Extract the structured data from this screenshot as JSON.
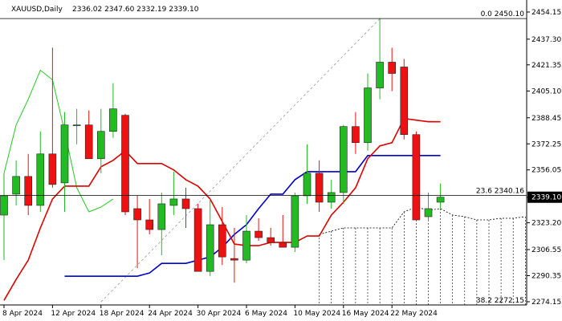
{
  "chart_data": {
    "type": "candlestick",
    "symbol": "XAUUSD,Daily",
    "ohlc_text": "2336.02 2347.60 2332.19 2339.10",
    "current_price": "2339.10",
    "y_ticks": [
      "2454.15",
      "2437.30",
      "2421.35",
      "2405.10",
      "2388.45",
      "2372.25",
      "2356.05",
      "2339.10",
      "2323.20",
      "2306.55",
      "2290.35",
      "2274.15"
    ],
    "x_ticks": [
      {
        "label": "8 Apr 2024",
        "i": 0
      },
      {
        "label": "12 Apr 2024",
        "i": 4
      },
      {
        "label": "18 Apr 2024",
        "i": 8
      },
      {
        "label": "24 Apr 2024",
        "i": 12
      },
      {
        "label": "30 Apr 2024",
        "i": 16
      },
      {
        "label": "6 May 2024",
        "i": 20
      },
      {
        "label": "10 May 2024",
        "i": 24
      },
      {
        "label": "16 May 2024",
        "i": 28
      },
      {
        "label": "22 May 2024",
        "i": 32
      }
    ],
    "fib_levels": [
      {
        "label": "0.0 2450.10",
        "value": 2450.1
      },
      {
        "label": "23.6 2340.16",
        "value": 2340.16
      },
      {
        "label": "38.2 2272.15",
        "value": 2272.15
      }
    ],
    "colors": {
      "bull": "#22bb22",
      "bear": "#ee1111",
      "tenkan": "#dd0000",
      "kijun": "#0000cc",
      "chikou": "#22cc22"
    },
    "candles": [
      {
        "o": 2328,
        "h": 2354,
        "l": 2300,
        "c": 2340
      },
      {
        "o": 2341,
        "h": 2362,
        "l": 2334,
        "c": 2352
      },
      {
        "o": 2352,
        "h": 2366,
        "l": 2328,
        "c": 2334
      },
      {
        "o": 2334,
        "h": 2380,
        "l": 2330,
        "c": 2366
      },
      {
        "o": 2366,
        "h": 2432,
        "l": 2345,
        "c": 2347
      },
      {
        "o": 2348,
        "h": 2392,
        "l": 2330,
        "c": 2384
      },
      {
        "o": 2384,
        "h": 2394,
        "l": 2372,
        "c": 2384
      },
      {
        "o": 2384,
        "h": 2393,
        "l": 2364,
        "c": 2363
      },
      {
        "o": 2363,
        "h": 2394,
        "l": 2354,
        "c": 2380
      },
      {
        "o": 2380,
        "h": 2410,
        "l": 2376,
        "c": 2394
      },
      {
        "o": 2390,
        "h": 2391,
        "l": 2328,
        "c": 2330
      },
      {
        "o": 2332,
        "h": 2340,
        "l": 2295,
        "c": 2325
      },
      {
        "o": 2325,
        "h": 2338,
        "l": 2316,
        "c": 2319
      },
      {
        "o": 2319,
        "h": 2342,
        "l": 2303,
        "c": 2335
      },
      {
        "o": 2334,
        "h": 2355,
        "l": 2328,
        "c": 2338
      },
      {
        "o": 2338,
        "h": 2345,
        "l": 2320,
        "c": 2332
      },
      {
        "o": 2332,
        "h": 2335,
        "l": 2293,
        "c": 2293
      },
      {
        "o": 2293,
        "h": 2338,
        "l": 2290,
        "c": 2322
      },
      {
        "o": 2322,
        "h": 2333,
        "l": 2297,
        "c": 2302
      },
      {
        "o": 2301,
        "h": 2320,
        "l": 2286,
        "c": 2300
      },
      {
        "o": 2300,
        "h": 2328,
        "l": 2298,
        "c": 2318
      },
      {
        "o": 2318,
        "h": 2326,
        "l": 2312,
        "c": 2314
      },
      {
        "o": 2314,
        "h": 2320,
        "l": 2309,
        "c": 2311
      },
      {
        "o": 2311,
        "h": 2328,
        "l": 2308,
        "c": 2308
      },
      {
        "o": 2308,
        "h": 2342,
        "l": 2305,
        "c": 2340
      },
      {
        "o": 2340,
        "h": 2372,
        "l": 2335,
        "c": 2354
      },
      {
        "o": 2354,
        "h": 2362,
        "l": 2330,
        "c": 2336
      },
      {
        "o": 2336,
        "h": 2350,
        "l": 2332,
        "c": 2342
      },
      {
        "o": 2342,
        "h": 2384,
        "l": 2335,
        "c": 2383
      },
      {
        "o": 2383,
        "h": 2392,
        "l": 2366,
        "c": 2373
      },
      {
        "o": 2373,
        "h": 2416,
        "l": 2368,
        "c": 2407
      },
      {
        "o": 2407,
        "h": 2450,
        "l": 2400,
        "c": 2423
      },
      {
        "o": 2423,
        "h": 2432,
        "l": 2405,
        "c": 2416
      },
      {
        "o": 2420,
        "h": 2425,
        "l": 2375,
        "c": 2378
      },
      {
        "o": 2378,
        "h": 2380,
        "l": 2325,
        "c": 2325
      },
      {
        "o": 2327,
        "h": 2342,
        "l": 2324,
        "c": 2332
      },
      {
        "o": 2336,
        "h": 2347.6,
        "l": 2332.19,
        "c": 2339.1
      }
    ],
    "tenkan": [
      [
        0,
        2275
      ],
      [
        1,
        2288
      ],
      [
        2,
        2300
      ],
      [
        3,
        2320
      ],
      [
        4,
        2338
      ],
      [
        5,
        2346
      ],
      [
        6,
        2346
      ],
      [
        7,
        2346
      ],
      [
        8,
        2358
      ],
      [
        9,
        2362
      ],
      [
        10,
        2368
      ],
      [
        11,
        2360
      ],
      [
        12,
        2360
      ],
      [
        13,
        2360
      ],
      [
        14,
        2356
      ],
      [
        15,
        2350
      ],
      [
        16,
        2346
      ],
      [
        17,
        2338
      ],
      [
        18,
        2324
      ],
      [
        19,
        2310
      ],
      [
        20,
        2309
      ],
      [
        21,
        2309
      ],
      [
        22,
        2311
      ],
      [
        23,
        2311
      ],
      [
        24,
        2311
      ],
      [
        25,
        2315
      ],
      [
        26,
        2315
      ],
      [
        27,
        2328
      ],
      [
        28,
        2336
      ],
      [
        29,
        2345
      ],
      [
        30,
        2363
      ],
      [
        31,
        2371
      ],
      [
        32,
        2373
      ],
      [
        33,
        2388
      ],
      [
        34,
        2387
      ],
      [
        35,
        2386
      ],
      [
        36,
        2386
      ]
    ],
    "kijun": [
      [
        5,
        2290
      ],
      [
        6,
        2290
      ],
      [
        7,
        2290
      ],
      [
        8,
        2290
      ],
      [
        9,
        2290
      ],
      [
        10,
        2290
      ],
      [
        11,
        2290
      ],
      [
        12,
        2292
      ],
      [
        13,
        2298
      ],
      [
        14,
        2298
      ],
      [
        15,
        2298
      ],
      [
        16,
        2300
      ],
      [
        17,
        2302
      ],
      [
        18,
        2308
      ],
      [
        19,
        2316
      ],
      [
        20,
        2322
      ],
      [
        21,
        2332
      ],
      [
        22,
        2341
      ],
      [
        23,
        2341
      ],
      [
        24,
        2350
      ],
      [
        25,
        2355
      ],
      [
        26,
        2355
      ],
      [
        27,
        2355
      ],
      [
        28,
        2355
      ],
      [
        29,
        2355
      ],
      [
        30,
        2365
      ],
      [
        31,
        2365
      ],
      [
        32,
        2365
      ],
      [
        33,
        2365
      ],
      [
        34,
        2365
      ],
      [
        35,
        2365
      ],
      [
        36,
        2365
      ]
    ],
    "chikou": [
      [
        0,
        2354
      ],
      [
        1,
        2384
      ],
      [
        2,
        2400
      ],
      [
        3,
        2418
      ],
      [
        4,
        2412
      ],
      [
        5,
        2380
      ],
      [
        6,
        2345
      ],
      [
        7,
        2330
      ],
      [
        8,
        2333
      ],
      [
        9,
        2338
      ]
    ],
    "cloud_edge": [
      [
        26,
        2316
      ],
      [
        27,
        2318
      ],
      [
        28,
        2320
      ],
      [
        29,
        2320
      ],
      [
        30,
        2320
      ],
      [
        31,
        2320
      ],
      [
        32,
        2320
      ],
      [
        33,
        2330
      ],
      [
        34,
        2333
      ],
      [
        35,
        2331
      ],
      [
        36,
        2332
      ],
      [
        37,
        2328
      ],
      [
        38,
        2327
      ],
      [
        39,
        2325
      ],
      [
        40,
        2325
      ],
      [
        41,
        2326
      ],
      [
        42,
        2326
      ],
      [
        43,
        2327
      ]
    ],
    "diagonal": {
      "from": [
        8,
        2274
      ],
      "to": [
        31,
        2450
      ]
    }
  }
}
